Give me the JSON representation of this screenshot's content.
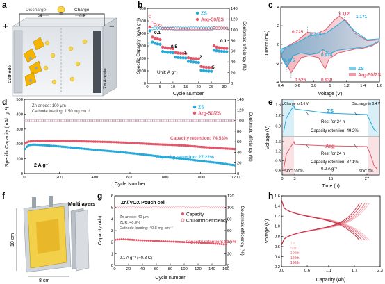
{
  "panel_a": {
    "letter": "a",
    "discharge": "Discharge",
    "charge": "Charge",
    "e_discharge": "2e⁻",
    "e_charge": "2e⁻",
    "plus": "+",
    "minus": "−",
    "cathode": "Cathode",
    "anode": "Zn Anode"
  },
  "panel_b": {
    "letter": "b",
    "legend": [
      "ZS",
      "Arg-50/ZS"
    ],
    "unit": "Unit: A g⁻¹",
    "rates": [
      "0.1",
      "0.5",
      "1",
      "2",
      "5",
      "0.1"
    ]
  },
  "panel_c": {
    "letter": "c",
    "peaks": [
      "1.112",
      "1.171",
      "0.725",
      "0.744",
      "0.914",
      "0.475",
      "0.526",
      "0.939"
    ],
    "legend": [
      "ZS",
      "Arg-50/ZS"
    ]
  },
  "panel_d": {
    "letter": "d",
    "note1": "Zn anode: 100 μm",
    "note2": "Cathode loading: 1.50 mg cm⁻²",
    "legend": [
      "ZS",
      "Arg-50/ZS"
    ],
    "retention_arg": "Capacity retention: 74.53%",
    "retention_zs": "Capacity retention: 27.22%",
    "rate": "2 A g⁻¹"
  },
  "panel_e": {
    "letter": "e",
    "charge_to": "Charge to 1.6 V",
    "discharge_to": "Discharge to 0.4 V",
    "zs": "ZS",
    "rest1": "Rest for 24 h",
    "retention1": "Capacity retention: 49.2%",
    "arg": "Arg",
    "rest2": "Rest for 24 h",
    "retention2": "Capacity retention: 87.1%",
    "rate": "0.2 A g⁻¹",
    "soc100": "SOC 100%",
    "soc0": "SOC 0%"
  },
  "panel_f": {
    "letter": "f",
    "multilayers": "Multilayers",
    "height": "10 cm",
    "width": "8 cm"
  },
  "panel_g": {
    "letter": "g",
    "cell": "Zn//VOX Pouch cell",
    "note1": "Zn anode: 40 μm",
    "note2": "ZUR: 40.8%",
    "note3": "Cathode loading: 40.8 mg cm⁻²",
    "legend": [
      "Capacity",
      "Coulombic efficiency"
    ],
    "retention": "Capacity retention: 80.5%",
    "rate": "0.1 A g⁻¹ (~0.3 C)"
  },
  "panel_h": {
    "letter": "h",
    "legend": [
      "1st",
      "50th",
      "100th",
      "150th",
      "160th"
    ]
  },
  "colors": {
    "zs": "#29a9d8",
    "arg": "#e0596b",
    "ce_pink": "#f19aa4"
  },
  "chart_data": [
    {
      "panel": "b",
      "type": "scatter",
      "xlabel": "Cycle Number",
      "ylabel": "Specific Capacity (mAh g⁻¹)",
      "y2label": "Coulombic efficiency (%)",
      "xlim": [
        0,
        32
      ],
      "ylim": [
        0,
        600
      ],
      "y2lim": [
        0,
        140
      ],
      "xticks": [
        0,
        5,
        10,
        15,
        20,
        25,
        30
      ],
      "yticks": [
        0,
        100,
        200,
        300,
        400,
        500,
        600
      ],
      "y2ticks": [
        0,
        20,
        40,
        60,
        80,
        100,
        120,
        140
      ],
      "series": [
        {
          "name": "ZS",
          "axis": "left",
          "x": [
            1,
            2,
            3,
            4,
            5,
            6,
            7,
            8,
            9,
            10,
            11,
            12,
            13,
            14,
            15,
            16,
            17,
            18,
            19,
            20,
            21,
            22,
            23,
            24,
            25,
            26,
            27,
            28,
            29,
            30,
            31
          ],
          "y": [
            420,
            330,
            320,
            315,
            312,
            255,
            250,
            248,
            246,
            244,
            210,
            207,
            205,
            204,
            203,
            175,
            172,
            170,
            168,
            166,
            105,
            100,
            98,
            97,
            96,
            265,
            260,
            258,
            256,
            254,
            253
          ]
        },
        {
          "name": "Arg-50/ZS",
          "axis": "left",
          "x": [
            1,
            2,
            3,
            4,
            5,
            6,
            7,
            8,
            9,
            10,
            11,
            12,
            13,
            14,
            15,
            16,
            17,
            18,
            19,
            20,
            21,
            22,
            23,
            24,
            25,
            26,
            27,
            28,
            29,
            30,
            31
          ],
          "y": [
            450,
            370,
            360,
            355,
            350,
            290,
            285,
            282,
            280,
            278,
            245,
            242,
            240,
            239,
            238,
            205,
            200,
            198,
            197,
            196,
            135,
            130,
            128,
            127,
            126,
            300,
            290,
            285,
            283,
            280,
            279
          ]
        },
        {
          "name": "ZS",
          "axis": "right",
          "x": [
            1,
            2,
            3,
            4,
            5,
            6,
            7,
            8,
            9,
            10,
            11,
            12,
            13,
            14,
            15,
            16,
            17,
            18,
            19,
            20,
            21,
            22,
            23,
            24,
            25,
            26,
            27,
            28,
            29,
            30,
            31
          ],
          "y": [
            75,
            102,
            103,
            103,
            103,
            103,
            103,
            103,
            103,
            103,
            103,
            103,
            103,
            103,
            103,
            103,
            103,
            103,
            103,
            103,
            103,
            103,
            103,
            103,
            103,
            103,
            103,
            103,
            103,
            103,
            103
          ]
        },
        {
          "name": "Arg-50/ZS",
          "axis": "right",
          "x": [
            1,
            2,
            3,
            4,
            5,
            6,
            7,
            8,
            9,
            10,
            11,
            12,
            13,
            14,
            15,
            16,
            17,
            18,
            19,
            20,
            21,
            22,
            23,
            24,
            25,
            26,
            27,
            28,
            29,
            30,
            31
          ],
          "y": [
            125,
            113,
            110,
            109,
            108,
            102,
            102,
            102,
            102,
            102,
            101,
            101,
            101,
            101,
            101,
            101,
            101,
            101,
            101,
            101,
            101,
            101,
            101,
            101,
            101,
            104,
            103,
            103,
            103,
            103,
            103
          ]
        }
      ]
    },
    {
      "panel": "c",
      "type": "line",
      "xlabel": "Voltage (V)",
      "ylabel": "Current (mA)",
      "xlim": [
        0.4,
        1.6
      ],
      "ylim": [
        -4,
        4
      ],
      "xticks": [
        0.4,
        0.6,
        0.8,
        1.0,
        1.2,
        1.4,
        1.6
      ],
      "yticks": [
        -4,
        -2,
        0,
        2,
        4
      ],
      "series": [
        {
          "name": "ZS",
          "x": [
            0.4,
            0.46,
            0.52,
            0.6,
            0.744,
            0.85,
            0.95,
            1.05,
            1.171,
            1.3,
            1.45,
            1.6,
            1.6,
            1.5,
            1.4,
            1.3,
            1.2,
            1.1,
            0.99,
            0.914,
            0.85,
            0.75,
            0.65,
            0.55,
            0.475,
            0.42,
            0.4
          ],
          "y": [
            -0.5,
            -0.3,
            -0.1,
            0.2,
            0.9,
            1.0,
            1.2,
            1.8,
            2.6,
            1.4,
            0.5,
            0.6,
            0.4,
            -0.1,
            -0.3,
            -0.4,
            -0.5,
            -0.6,
            -1.0,
            -0.55,
            -0.95,
            -1.1,
            -0.9,
            -1.2,
            -2.4,
            -1.6,
            -0.5
          ]
        },
        {
          "name": "Arg-50/ZS",
          "x": [
            0.4,
            0.46,
            0.52,
            0.6,
            0.725,
            0.85,
            0.95,
            1.05,
            1.112,
            1.2,
            1.3,
            1.45,
            1.6,
            1.6,
            1.5,
            1.4,
            1.3,
            1.2,
            1.1,
            0.99,
            0.939,
            0.86,
            0.75,
            0.65,
            0.526,
            0.45,
            0.4
          ],
          "y": [
            -1.2,
            -0.3,
            0.0,
            0.4,
            1.3,
            1.2,
            1.6,
            2.6,
            3.0,
            2.5,
            1.2,
            0.4,
            0.5,
            0.3,
            -0.2,
            -0.4,
            -0.5,
            -0.7,
            -0.9,
            -1.5,
            -2.6,
            -1.4,
            -1.2,
            -1.4,
            -3.0,
            -1.8,
            -1.2
          ]
        }
      ]
    },
    {
      "panel": "d",
      "type": "scatter",
      "xlabel": "Cycle Number",
      "ylabel": "Specific Capacity (mAh g⁻¹)",
      "y2label": "Coulombic efficiency (%)",
      "xlim": [
        0,
        1200
      ],
      "ylim": [
        0,
        500
      ],
      "y2lim": [
        0,
        140
      ],
      "xticks": [
        0,
        200,
        400,
        600,
        800,
        1000,
        1200
      ],
      "yticks": [
        0,
        100,
        200,
        300,
        400,
        500
      ],
      "y2ticks": [
        0,
        20,
        40,
        60,
        80,
        100,
        120,
        140
      ],
      "series": [
        {
          "name": "ZS",
          "axis": "left",
          "x": [
            0,
            20,
            50,
            100,
            200,
            300,
            400,
            500,
            600,
            700,
            800,
            900,
            1000,
            1100,
            1200
          ],
          "y": [
            160,
            190,
            195,
            192,
            183,
            172,
            160,
            150,
            138,
            125,
            112,
            100,
            85,
            72,
            55
          ]
        },
        {
          "name": "Arg-50/ZS",
          "axis": "left",
          "x": [
            0,
            20,
            50,
            100,
            200,
            300,
            400,
            500,
            600,
            700,
            800,
            900,
            1000,
            1100,
            1200
          ],
          "y": [
            200,
            215,
            218,
            220,
            220,
            218,
            215,
            212,
            207,
            200,
            195,
            190,
            180,
            172,
            165
          ]
        },
        {
          "name": "ZS",
          "axis": "right",
          "x": [
            0,
            200,
            400,
            600,
            800,
            1000,
            1200
          ],
          "y": [
            100,
            100,
            100,
            100,
            100,
            100,
            100
          ]
        },
        {
          "name": "Arg-50/ZS",
          "axis": "right",
          "x": [
            0,
            200,
            400,
            600,
            800,
            1000,
            1200
          ],
          "y": [
            100,
            100,
            100,
            100,
            100,
            100,
            100
          ]
        }
      ]
    },
    {
      "panel": "e",
      "type": "line",
      "xlabel": "Time (h)",
      "ylabel": "Voltage (V)",
      "xticks": [
        0,
        3,
        15,
        27
      ],
      "yticks_top": [
        0.8,
        1.2,
        1.6
      ],
      "yticks_bottom": [
        0.4,
        0.8,
        1.2,
        1.6
      ]
    },
    {
      "panel": "g",
      "type": "scatter",
      "xlabel": "Cycle number",
      "ylabel": "Capacity (Ah)",
      "y2label": "Coulombic efficiency (%)",
      "xlim": [
        0,
        160
      ],
      "ylim": [
        0,
        6
      ],
      "y2lim": [
        0,
        120
      ],
      "xticks": [
        0,
        20,
        40,
        60,
        80,
        100,
        120,
        140,
        160
      ],
      "yticks": [
        0,
        1,
        2,
        3,
        4,
        5,
        6
      ],
      "y2ticks": [
        0,
        20,
        40,
        60,
        80,
        100,
        120
      ],
      "series": [
        {
          "name": "Capacity",
          "axis": "left",
          "x": [
            0,
            10,
            20,
            40,
            60,
            80,
            100,
            120,
            140,
            160
          ],
          "y": [
            2.2,
            2.25,
            2.22,
            2.15,
            2.1,
            2.05,
            2.0,
            1.95,
            1.88,
            1.8
          ]
        },
        {
          "name": "Coulombic efficiency",
          "axis": "right",
          "x": [
            0,
            20,
            40,
            60,
            80,
            100,
            120,
            140,
            160
          ],
          "y": [
            100,
            100,
            100,
            100,
            100,
            100,
            100,
            100,
            100
          ]
        }
      ]
    },
    {
      "panel": "h",
      "type": "line",
      "xlabel": "Capacity (Ah)",
      "ylabel": "Voltage (V)",
      "xlim": [
        0,
        2.3
      ],
      "ylim": [
        0.2,
        1.6
      ],
      "xticks": [
        0.0,
        0.6,
        1.1,
        1.7,
        2.3
      ],
      "yticks": [
        0.2,
        0.4,
        0.6,
        0.8,
        1.0,
        1.2,
        1.4,
        1.6
      ]
    }
  ]
}
